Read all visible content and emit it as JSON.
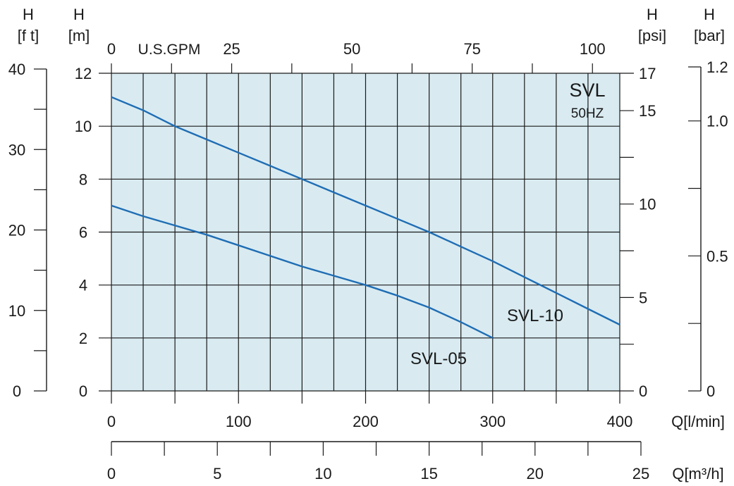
{
  "colors": {
    "plot_background": "#d9ebf1",
    "grid": "#1a1a1a",
    "curve": "#1f6db4",
    "text": "#1a1a1a"
  },
  "header": {
    "ft": {
      "line1": "H",
      "line2": "[f t]"
    },
    "m": {
      "line1": "H",
      "line2": "[m]"
    },
    "psi": {
      "line1": "H",
      "line2": "[psi]"
    },
    "bar": {
      "line1": "H",
      "line2": "[bar]"
    },
    "gpm_unit": "U.S.GPM"
  },
  "chart_data": {
    "type": "line",
    "title": "SVL",
    "subtitle": "50HZ",
    "x": {
      "label": "Q[l/min]",
      "range": [
        0,
        400
      ],
      "ticks": [
        "0",
        "100",
        "200",
        "300",
        "400"
      ]
    },
    "y": {
      "label": "H [m]",
      "range": [
        0,
        12
      ],
      "ticks": [
        "0",
        "2",
        "4",
        "6",
        "8",
        "10",
        "12"
      ]
    },
    "grid": true,
    "secondary_axes": {
      "flow_m3h": {
        "label": "Q[m³/h]",
        "range": [
          0,
          25
        ],
        "ticks": [
          "0",
          "5",
          "10",
          "15",
          "20",
          "25"
        ]
      },
      "flow_gpm": {
        "label": "U.S.GPM",
        "ticks": [
          "0",
          "25",
          "50",
          "75",
          "100"
        ],
        "tick_values": [
          0,
          25,
          50,
          75,
          100
        ]
      },
      "head_ft": {
        "label": "H [f t]",
        "range": [
          0,
          40
        ],
        "ticks": [
          "0",
          "10",
          "20",
          "30",
          "40"
        ]
      },
      "head_psi": {
        "label": "H [psi]",
        "range": [
          0,
          17
        ],
        "ticks": [
          "0",
          "5",
          "10",
          "15",
          "17"
        ],
        "tick_values": [
          0,
          5,
          10,
          15,
          17
        ]
      },
      "head_bar": {
        "label": "H [bar]",
        "range": [
          0,
          1.2
        ],
        "ticks": [
          "0",
          "0.5",
          "1.0",
          "1.2"
        ],
        "tick_values": [
          0,
          0.5,
          1.0,
          1.2
        ]
      }
    },
    "series": [
      {
        "name": "SVL-10",
        "x": [
          0,
          25,
          50,
          75,
          100,
          125,
          150,
          175,
          200,
          225,
          250,
          275,
          300,
          325,
          350,
          375,
          400
        ],
        "y": [
          11.1,
          10.6,
          10.0,
          9.5,
          9.0,
          8.5,
          8.0,
          7.5,
          7.0,
          6.5,
          6.0,
          5.45,
          4.9,
          4.3,
          3.7,
          3.1,
          2.5
        ]
      },
      {
        "name": "SVL-05",
        "x": [
          0,
          25,
          50,
          75,
          100,
          125,
          150,
          175,
          200,
          225,
          250,
          275,
          300
        ],
        "y": [
          7.0,
          6.6,
          6.25,
          5.9,
          5.5,
          5.1,
          4.7,
          4.35,
          4.0,
          3.6,
          3.15,
          2.6,
          2.0
        ]
      }
    ]
  }
}
